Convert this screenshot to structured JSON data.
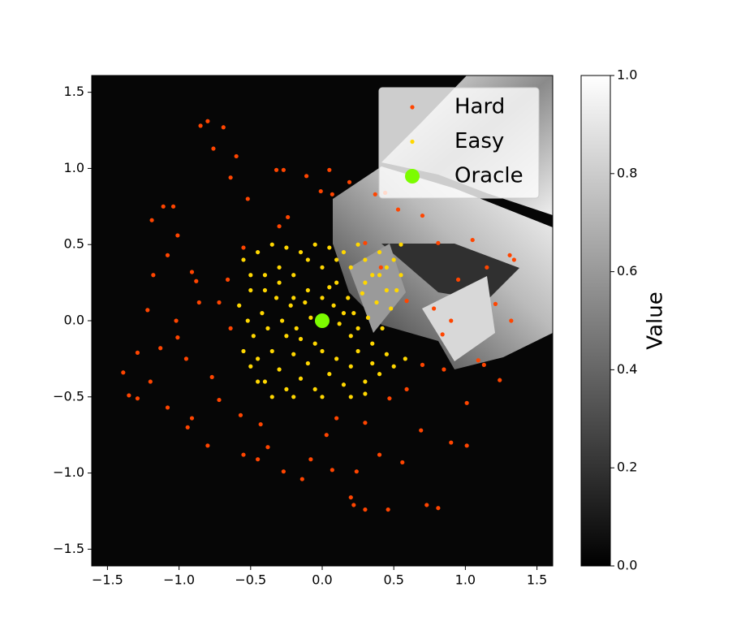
{
  "chart_data": {
    "type": "scatter",
    "xlim": [
      -1.61,
      1.61
    ],
    "ylim": [
      -1.61,
      1.61
    ],
    "xticks": [
      {
        "value": -1.5,
        "label": "−1.5"
      },
      {
        "value": -1.0,
        "label": "−1.0"
      },
      {
        "value": -0.5,
        "label": "−0.5"
      },
      {
        "value": 0,
        "label": "0.0"
      },
      0.5,
      {
        "value": 1.0,
        "label": "1.0"
      },
      {
        "value": 1.5,
        "label": "1.5"
      }
    ],
    "yticks": [
      {
        "value": -1.5,
        "label": "−1.5"
      },
      {
        "value": -1.0,
        "label": "−1.0"
      },
      {
        "value": -0.5,
        "label": "−0.5"
      },
      {
        "value": 0,
        "label": "0.0"
      },
      0.5,
      {
        "value": 1.0,
        "label": "1.0"
      },
      {
        "value": 1.5,
        "label": "1.5"
      }
    ],
    "legend": "upper right",
    "series": [
      {
        "name": "Hard",
        "color": "#ff4500",
        "size": "small",
        "x": [
          -0.8,
          -0.85,
          -0.69,
          -0.76,
          -0.6,
          -0.32,
          -0.27,
          0.05,
          -0.64,
          -0.11,
          -1.11,
          -1.04,
          -0.52,
          -1.19,
          -1.01,
          -1.08,
          -0.91,
          -1.18,
          -0.88,
          -0.86,
          -1.22,
          -1.02,
          -1.01,
          -1.13,
          -1.29,
          -0.95,
          -1.39,
          -1.2,
          -1.35,
          -1.29,
          -1.08,
          -0.91,
          -0.94,
          -0.8,
          -0.55,
          -0.45,
          -0.27,
          -0.14,
          -0.08,
          0.2,
          0.22,
          0.3,
          0.46,
          0.73,
          0.81,
          0.56,
          0.9,
          1.01,
          0.69,
          1.01,
          1.24,
          1.13,
          0.85,
          1.09,
          0.84,
          1.21,
          1.32,
          1.31,
          1.34,
          1.15,
          0.95,
          0.81,
          1.05,
          0.7,
          0.53,
          0.44,
          0.37,
          0.19,
          0.07,
          -0.01,
          -0.24,
          -0.3,
          -0.55,
          -0.66,
          -0.72,
          -0.64,
          -0.77,
          -0.72,
          -0.57,
          -0.43,
          -0.38,
          0.03,
          0.1,
          0.3,
          0.4,
          0.24,
          0.07,
          0.47,
          0.59,
          0.7,
          0.9,
          0.78,
          0.59,
          0.41,
          0.3
        ],
        "y": [
          1.31,
          1.28,
          1.27,
          1.13,
          1.08,
          0.99,
          0.99,
          0.99,
          0.94,
          0.95,
          0.75,
          0.75,
          0.8,
          0.66,
          0.56,
          0.43,
          0.32,
          0.3,
          0.26,
          0.12,
          0.07,
          0.0,
          -0.11,
          -0.18,
          -0.21,
          -0.25,
          -0.34,
          -0.4,
          -0.49,
          -0.51,
          -0.57,
          -0.64,
          -0.7,
          -0.82,
          -0.88,
          -0.91,
          -0.99,
          -1.04,
          -0.91,
          -1.16,
          -1.21,
          -1.24,
          -1.24,
          -1.21,
          -1.23,
          -0.93,
          -0.8,
          -0.82,
          -0.72,
          -0.54,
          -0.39,
          -0.29,
          -0.32,
          -0.26,
          -0.09,
          0.11,
          0.0,
          0.43,
          0.4,
          0.35,
          0.27,
          0.51,
          0.53,
          0.69,
          0.73,
          0.84,
          0.83,
          0.91,
          0.83,
          0.85,
          0.68,
          0.62,
          0.48,
          0.27,
          0.12,
          -0.05,
          -0.37,
          -0.52,
          -0.62,
          -0.68,
          -0.83,
          -0.75,
          -0.64,
          -0.67,
          -0.88,
          -0.99,
          -0.98,
          -0.51,
          -0.45,
          -0.29,
          0.0,
          0.08,
          0.13,
          0.35,
          0.51
        ]
      },
      {
        "name": "Easy",
        "color": "#ffd700",
        "size": "small",
        "x": [
          -0.55,
          -0.5,
          -0.45,
          -0.4,
          -0.35,
          -0.3,
          -0.25,
          -0.2,
          -0.15,
          -0.1,
          -0.05,
          0.0,
          0.05,
          0.1,
          0.15,
          0.2,
          0.25,
          0.3,
          0.35,
          0.4,
          0.45,
          0.5,
          0.55,
          -0.58,
          -0.52,
          -0.48,
          -0.42,
          -0.38,
          -0.32,
          -0.28,
          -0.22,
          -0.18,
          -0.12,
          -0.08,
          0.08,
          0.12,
          0.18,
          0.22,
          0.28,
          0.32,
          0.38,
          0.42,
          0.48,
          0.52,
          -0.55,
          -0.5,
          -0.45,
          -0.4,
          -0.35,
          -0.3,
          -0.25,
          -0.2,
          -0.15,
          -0.1,
          -0.05,
          0.0,
          0.05,
          0.1,
          0.15,
          0.2,
          0.25,
          0.3,
          0.35,
          0.4,
          0.45,
          0.5,
          0.58,
          -0.2,
          0.0,
          0.2,
          0.3,
          -0.35,
          -0.4,
          -0.3,
          -0.1,
          0.1,
          0.3,
          0.45,
          0.55,
          -0.5,
          -0.2,
          0.0,
          0.2,
          0.35,
          -0.15,
          -0.05,
          0.05,
          -0.25,
          0.15,
          0.4,
          -0.45,
          0.25
        ],
        "y": [
          0.4,
          0.3,
          0.45,
          0.2,
          0.5,
          0.35,
          0.48,
          0.3,
          0.45,
          0.2,
          0.5,
          0.35,
          0.48,
          0.25,
          0.45,
          0.35,
          0.5,
          0.4,
          0.3,
          0.45,
          0.35,
          0.4,
          0.5,
          0.1,
          0.0,
          -0.1,
          0.05,
          -0.05,
          0.15,
          0.0,
          0.1,
          -0.05,
          0.12,
          0.02,
          0.1,
          -0.02,
          0.15,
          0.05,
          0.18,
          0.02,
          0.12,
          -0.05,
          0.08,
          0.2,
          -0.2,
          -0.3,
          -0.25,
          -0.4,
          -0.2,
          -0.32,
          -0.45,
          -0.22,
          -0.38,
          -0.28,
          -0.45,
          -0.2,
          -0.35,
          -0.25,
          -0.42,
          -0.3,
          -0.2,
          -0.4,
          -0.28,
          -0.35,
          -0.22,
          -0.3,
          -0.25,
          -0.5,
          -0.5,
          -0.5,
          -0.48,
          -0.5,
          0.3,
          0.25,
          0.4,
          0.4,
          0.25,
          0.2,
          0.3,
          0.2,
          0.15,
          0.15,
          -0.1,
          -0.15,
          -0.12,
          -0.15,
          0.22,
          -0.1,
          0.05,
          0.3,
          -0.4,
          -0.05
        ]
      },
      {
        "name": "Oracle",
        "color": "#7cfc00",
        "size": "large",
        "x": [
          0
        ],
        "y": [
          0
        ]
      }
    ],
    "colorbar": {
      "label": "Value",
      "colormap": [
        "#000000",
        "#ffffff"
      ],
      "lim": [
        0,
        1
      ],
      "ticks": [
        {
          "value": 0,
          "label": "0.0"
        },
        0.2,
        0.4,
        0.6,
        0.8,
        {
          "value": 1,
          "label": "1.0"
        }
      ]
    }
  }
}
